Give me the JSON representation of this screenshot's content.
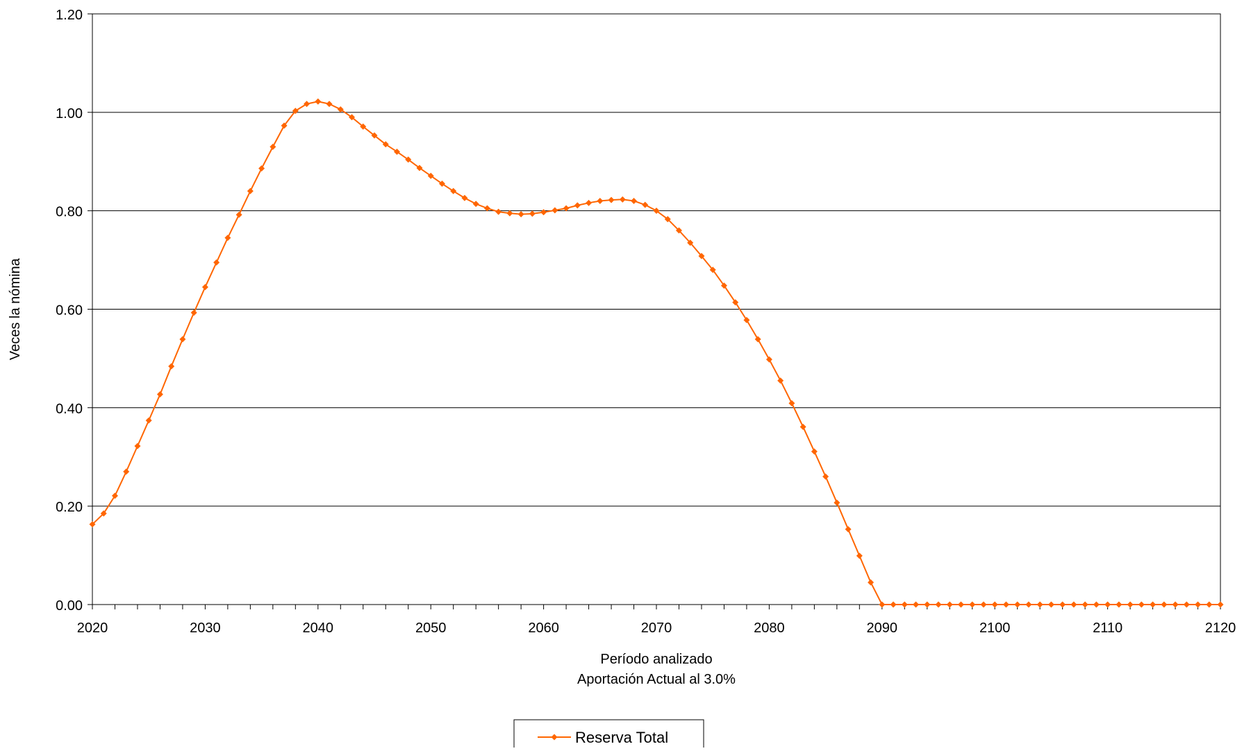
{
  "chart_data": {
    "type": "line",
    "title": "",
    "xlabel": "Período analizado",
    "xlabel2": "Aportación Actual al 3.0%",
    "ylabel": "Veces la nómina",
    "xlim": [
      2020,
      2120
    ],
    "ylim": [
      0,
      1.2
    ],
    "x_ticks": [
      "2020",
      "2030",
      "2040",
      "2050",
      "2060",
      "2070",
      "2080",
      "2090",
      "2100",
      "2110",
      "2120"
    ],
    "y_ticks": [
      "0.00",
      "0.20",
      "0.40",
      "0.60",
      "0.80",
      "1.00",
      "1.20"
    ],
    "grid": "horizontal",
    "legend_position": "bottom-center",
    "series": [
      {
        "name": "Reserva Total",
        "color": "#FF6600",
        "marker": "diamond",
        "x": [
          2020,
          2021,
          2022,
          2023,
          2024,
          2025,
          2026,
          2027,
          2028,
          2029,
          2030,
          2031,
          2032,
          2033,
          2034,
          2035,
          2036,
          2037,
          2038,
          2039,
          2040,
          2041,
          2042,
          2043,
          2044,
          2045,
          2046,
          2047,
          2048,
          2049,
          2050,
          2051,
          2052,
          2053,
          2054,
          2055,
          2056,
          2057,
          2058,
          2059,
          2060,
          2061,
          2062,
          2063,
          2064,
          2065,
          2066,
          2067,
          2068,
          2069,
          2070,
          2071,
          2072,
          2073,
          2074,
          2075,
          2076,
          2077,
          2078,
          2079,
          2080,
          2081,
          2082,
          2083,
          2084,
          2085,
          2086,
          2087,
          2088,
          2089,
          2090,
          2091,
          2092,
          2093,
          2094,
          2095,
          2096,
          2097,
          2098,
          2099,
          2100,
          2101,
          2102,
          2103,
          2104,
          2105,
          2106,
          2107,
          2108,
          2109,
          2110,
          2111,
          2112,
          2113,
          2114,
          2115,
          2116,
          2117,
          2118,
          2119,
          2120
        ],
        "values": [
          0.163,
          0.185,
          0.221,
          0.27,
          0.322,
          0.374,
          0.427,
          0.484,
          0.539,
          0.593,
          0.645,
          0.695,
          0.745,
          0.792,
          0.84,
          0.886,
          0.93,
          0.973,
          1.003,
          1.017,
          1.022,
          1.017,
          1.006,
          0.99,
          0.971,
          0.953,
          0.935,
          0.92,
          0.904,
          0.887,
          0.871,
          0.855,
          0.84,
          0.826,
          0.814,
          0.805,
          0.798,
          0.795,
          0.793,
          0.794,
          0.797,
          0.801,
          0.805,
          0.811,
          0.816,
          0.82,
          0.822,
          0.823,
          0.82,
          0.812,
          0.8,
          0.783,
          0.76,
          0.735,
          0.708,
          0.68,
          0.648,
          0.614,
          0.578,
          0.539,
          0.498,
          0.455,
          0.409,
          0.361,
          0.311,
          0.26,
          0.207,
          0.153,
          0.099,
          0.045,
          0,
          0,
          0,
          0,
          0,
          0,
          0,
          0,
          0,
          0,
          0,
          0,
          0,
          0,
          0,
          0,
          0,
          0,
          0,
          0,
          0,
          0,
          0,
          0,
          0,
          0,
          0,
          0,
          0,
          0,
          0
        ]
      }
    ]
  }
}
